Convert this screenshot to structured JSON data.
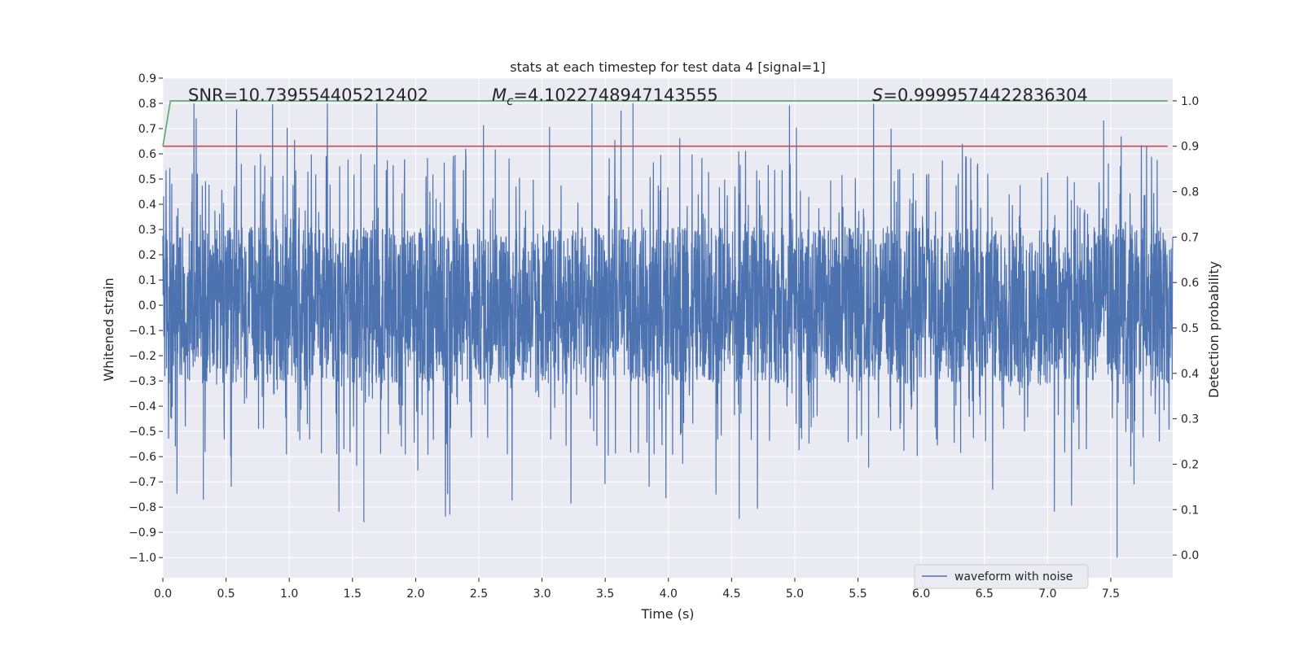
{
  "chart_data": {
    "type": "line",
    "title": "stats at each timestep for test data 4 [signal=1]",
    "xlabel": "Time (s)",
    "ylabel": "Whitened strain",
    "y2label": "Detection probability",
    "xlim": [
      0.0,
      7.99
    ],
    "ylim": [
      -1.08,
      0.9
    ],
    "y2lim": [
      -0.05,
      1.05
    ],
    "xticks": [
      "0.0",
      "0.5",
      "1.0",
      "1.5",
      "2.0",
      "2.5",
      "3.0",
      "3.5",
      "4.0",
      "4.5",
      "5.0",
      "5.5",
      "6.0",
      "6.5",
      "7.0",
      "7.5"
    ],
    "yticks": [
      "0.9",
      "0.8",
      "0.7",
      "0.6",
      "0.5",
      "0.4",
      "0.3",
      "0.2",
      "0.1",
      "0.0",
      "−0.1",
      "−0.2",
      "−0.3",
      "−0.4",
      "−0.5",
      "−0.6",
      "−0.7",
      "−0.8",
      "−0.9",
      "−1.0"
    ],
    "y2ticks": [
      "1.0",
      "0.9",
      "0.8",
      "0.7",
      "0.6",
      "0.5",
      "0.4",
      "0.3",
      "0.2",
      "0.1",
      "0.0"
    ],
    "grid": true,
    "legend": {
      "placement": "lower-right",
      "entries": [
        "waveform with noise"
      ]
    },
    "annotations": {
      "snr": "SNR=10.739554405212402",
      "mc_symbol": "M",
      "mc_sub": "c",
      "mc_value": "=4.1022748947143555",
      "s_symbol": "S",
      "s_value": "=0.9999574422836304"
    },
    "series": [
      {
        "name": "waveform with noise",
        "color": "#4c72b0",
        "kind": "noise",
        "n_samples": 4096,
        "core_amplitude": 0.27,
        "max": 0.8,
        "min": -1.0
      },
      {
        "color": "#55a868",
        "axis": "y2",
        "x": [
          0.0,
          0.06,
          0.12,
          7.95
        ],
        "y": [
          0.9,
          1.0,
          1.0,
          1.0
        ]
      },
      {
        "color": "#c44e52",
        "axis": "y2",
        "x": [
          0.0,
          7.95
        ],
        "y": [
          0.9,
          0.9
        ]
      }
    ],
    "colors": {
      "background": "#eaeaf2",
      "grid": "#ffffff"
    }
  }
}
